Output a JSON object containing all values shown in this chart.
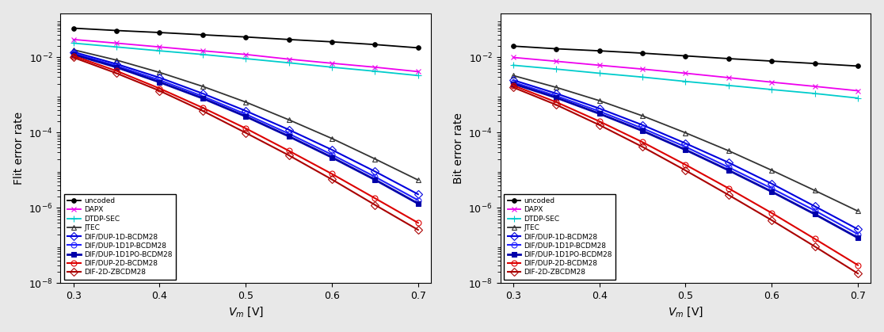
{
  "x": [
    0.3,
    0.35,
    0.4,
    0.45,
    0.5,
    0.55,
    0.6,
    0.65,
    0.7
  ],
  "flit": {
    "uncoded": [
      0.06,
      0.052,
      0.046,
      0.04,
      0.035,
      0.03,
      0.026,
      0.022,
      0.018
    ],
    "DAPX": [
      0.03,
      0.024,
      0.019,
      0.015,
      0.012,
      0.009,
      0.007,
      0.0055,
      0.0042
    ],
    "DTDP-SEC": [
      0.024,
      0.019,
      0.015,
      0.012,
      0.0093,
      0.0072,
      0.0055,
      0.0043,
      0.0033
    ],
    "JTEC": [
      0.016,
      0.0085,
      0.004,
      0.0017,
      0.00065,
      0.00022,
      7e-05,
      2e-05,
      5.5e-06
    ],
    "DIF_1D": [
      0.014,
      0.0067,
      0.0029,
      0.0011,
      0.00038,
      0.00012,
      3.5e-05,
      9.3e-06,
      2.3e-06
    ],
    "DIF_1D1P": [
      0.013,
      0.006,
      0.0025,
      0.00093,
      0.00031,
      9.4e-05,
      2.6e-05,
      6.7e-06,
      1.6e-06
    ],
    "DIF_1D1PO": [
      0.012,
      0.0055,
      0.0022,
      0.00082,
      0.00027,
      8e-05,
      2.2e-05,
      5.6e-06,
      1.3e-06
    ],
    "DIF_2D": [
      0.011,
      0.0044,
      0.0015,
      0.00046,
      0.00013,
      3.3e-05,
      8e-06,
      1.8e-06,
      4e-07
    ],
    "DIF_2D_Z": [
      0.01,
      0.0038,
      0.0013,
      0.00038,
      9.9e-05,
      2.5e-05,
      5.7e-06,
      1.2e-06,
      2.6e-07
    ]
  },
  "bit": {
    "uncoded": [
      0.02,
      0.017,
      0.015,
      0.013,
      0.011,
      0.0093,
      0.008,
      0.0069,
      0.0059
    ],
    "DAPX": [
      0.01,
      0.0079,
      0.0062,
      0.0049,
      0.0038,
      0.0029,
      0.0022,
      0.0017,
      0.0013
    ],
    "DTDP-SEC": [
      0.0062,
      0.0049,
      0.0038,
      0.003,
      0.0023,
      0.0018,
      0.0014,
      0.0011,
      0.00083
    ],
    "JTEC": [
      0.0033,
      0.0016,
      0.00071,
      0.00028,
      9.9e-05,
      3.3e-05,
      1e-05,
      2.9e-06,
      8.2e-07
    ],
    "DIF_1D": [
      0.0025,
      0.0011,
      0.00044,
      0.00016,
      5.2e-05,
      1.6e-05,
      4.4e-06,
      1.1e-06,
      2.7e-07
    ],
    "DIF_1D1P": [
      0.0022,
      0.00095,
      0.00037,
      0.000131,
      4.2e-05,
      1.2e-05,
      3.3e-06,
      8.5e-07,
      2e-07
    ],
    "DIF_1D1PO": [
      0.002,
      0.00085,
      0.00032,
      0.000112,
      3.5e-05,
      1e-05,
      2.7e-06,
      6.8e-07,
      1.6e-07
    ],
    "DIF_2D": [
      0.0018,
      0.00065,
      0.0002,
      5.6e-05,
      1.4e-05,
      3.3e-06,
      7.3e-07,
      1.5e-07,
      3e-08
    ],
    "DIF_2D_Z": [
      0.0016,
      0.00055,
      0.00016,
      4.2e-05,
      9.9e-06,
      2.2e-06,
      4.7e-07,
      9.4e-08,
      1.8e-08
    ]
  },
  "series_styles": {
    "uncoded": {
      "color": "#000000",
      "marker": "o",
      "markersize": 4,
      "linewidth": 1.3,
      "linestyle": "-",
      "markerfacecolor": "#000000",
      "markeredgecolor": "#000000"
    },
    "DAPX": {
      "color": "#EE00EE",
      "marker": "x",
      "markersize": 5,
      "linewidth": 1.3,
      "linestyle": "-",
      "markerfacecolor": "#EE00EE",
      "markeredgecolor": "#EE00EE"
    },
    "DTDP-SEC": {
      "color": "#00CCCC",
      "marker": "+",
      "markersize": 6,
      "linewidth": 1.3,
      "linestyle": "-",
      "markerfacecolor": "#00CCCC",
      "markeredgecolor": "#00CCCC"
    },
    "JTEC": {
      "color": "#333333",
      "marker": "^",
      "markersize": 5,
      "linewidth": 1.3,
      "linestyle": "-",
      "markerfacecolor": "none",
      "markeredgecolor": "#333333"
    },
    "DIF_1D": {
      "color": "#0000DD",
      "marker": "D",
      "markersize": 5,
      "linewidth": 1.5,
      "linestyle": "-",
      "markerfacecolor": "none",
      "markeredgecolor": "#0000DD"
    },
    "DIF_1D1P": {
      "color": "#2222FF",
      "marker": "o",
      "markersize": 5,
      "linewidth": 1.5,
      "linestyle": "-",
      "markerfacecolor": "none",
      "markeredgecolor": "#2222FF"
    },
    "DIF_1D1PO": {
      "color": "#0000AA",
      "marker": "s",
      "markersize": 4,
      "linewidth": 2.0,
      "linestyle": "-",
      "markerfacecolor": "#0000AA",
      "markeredgecolor": "#0000AA"
    },
    "DIF_2D": {
      "color": "#DD0000",
      "marker": "o",
      "markersize": 5,
      "linewidth": 1.5,
      "linestyle": "-",
      "markerfacecolor": "none",
      "markeredgecolor": "#DD0000"
    },
    "DIF_2D_Z": {
      "color": "#AA0000",
      "marker": "D",
      "markersize": 5,
      "linewidth": 1.5,
      "linestyle": "-",
      "markerfacecolor": "none",
      "markeredgecolor": "#AA0000"
    }
  },
  "legend_labels": {
    "uncoded": "uncoded",
    "DAPX": "DAPX",
    "DTDP-SEC": "DTDP-SEC",
    "JTEC": "JTEC",
    "DIF_1D": "DIF/DUP-1D-BCDM28",
    "DIF_1D1P": "DIF/DUP-1D1P-BCDM28",
    "DIF_1D1PO": "DIF/DUP-1D1PO-BCDM28",
    "DIF_2D": "DIF/DUP-2D-BCDM28",
    "DIF_2D_Z": "DIF-2D-ZBCDM28"
  },
  "ylabel_left": "Flit error rate",
  "ylabel_right": "Bit error rate",
  "xlabel": "$V_m$ [V]",
  "ylim": [
    1e-08,
    0.15
  ],
  "xlim": [
    0.285,
    0.715
  ],
  "xticks": [
    0.3,
    0.4,
    0.5,
    0.6,
    0.7
  ],
  "yticks_flit": [
    1e-08,
    1e-06,
    0.0001,
    0.01
  ],
  "yticks_bit": [
    1e-08,
    1e-06,
    0.0001,
    0.01
  ],
  "legend_fontsize": 6.5,
  "tick_fontsize": 9,
  "label_fontsize": 10,
  "background_color": "#ffffff",
  "fig_facecolor": "#e8e8e8"
}
